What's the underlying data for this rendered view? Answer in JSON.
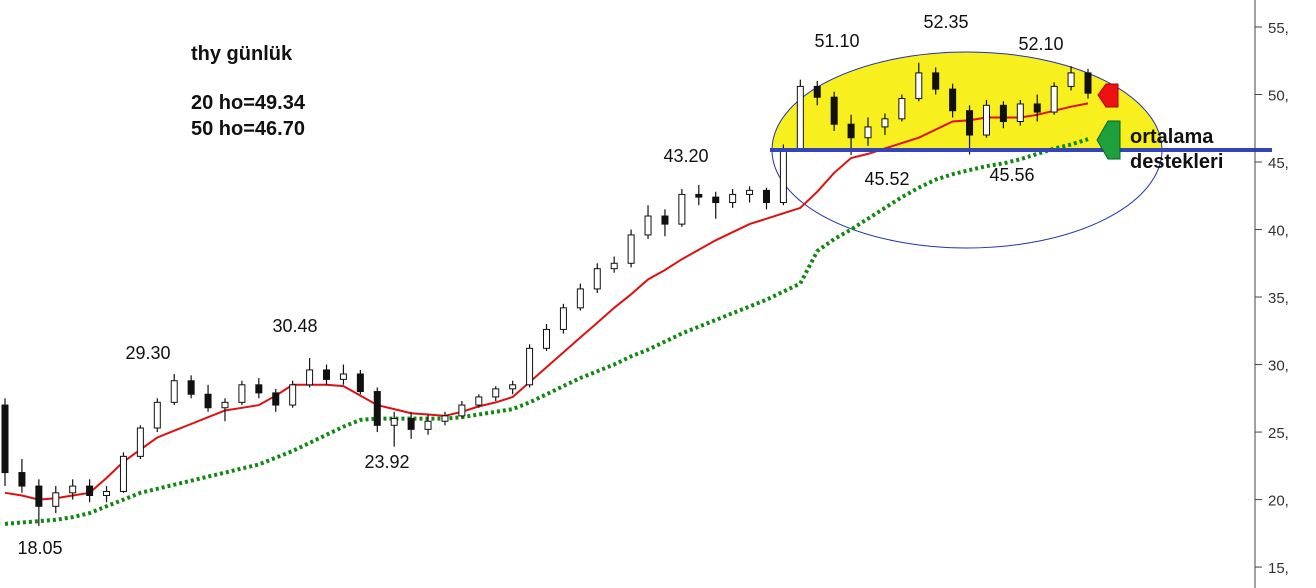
{
  "chart_data": {
    "type": "candlestick",
    "notes": [
      "thy günlük",
      "20 ho=49.34",
      "50 ho=46.70"
    ],
    "side_note": [
      "ortalama",
      "destekleri"
    ],
    "price_labels": [
      "18.05",
      "29.30",
      "30.48",
      "23.92",
      "43.20",
      "51.10",
      "52.35",
      "52.10",
      "45.52",
      "45.56"
    ],
    "candles": [
      [
        27,
        27.5,
        21,
        22
      ],
      [
        22,
        23,
        20.5,
        21
      ],
      [
        21,
        21.5,
        18.05,
        19.5
      ],
      [
        19.5,
        21,
        19,
        20.5
      ],
      [
        20.5,
        21.5,
        20,
        21
      ],
      [
        21,
        21.5,
        19.8,
        20.3
      ],
      [
        20.3,
        21,
        19.8,
        20.6
      ],
      [
        20.6,
        23.5,
        20.5,
        23.2
      ],
      [
        23.2,
        25.5,
        23,
        25.3
      ],
      [
        25.3,
        27.5,
        25,
        27.2
      ],
      [
        27.2,
        29.3,
        27,
        28.8
      ],
      [
        28.8,
        29.2,
        27.5,
        27.8
      ],
      [
        27.8,
        28.5,
        26.5,
        26.8
      ],
      [
        26.8,
        27.5,
        25.8,
        27.2
      ],
      [
        27.2,
        28.8,
        27,
        28.5
      ],
      [
        28.5,
        29,
        27.5,
        27.9
      ],
      [
        27.9,
        28.2,
        26.5,
        27
      ],
      [
        27,
        28.8,
        26.8,
        28.5
      ],
      [
        28.5,
        30.48,
        28.3,
        29.6
      ],
      [
        29.6,
        30,
        28.5,
        28.9
      ],
      [
        28.9,
        30,
        28.5,
        29.3
      ],
      [
        29.3,
        29.6,
        27.8,
        28
      ],
      [
        28,
        28.3,
        25,
        25.5
      ],
      [
        25.5,
        26.5,
        23.92,
        26
      ],
      [
        26,
        26.5,
        24.5,
        25.2
      ],
      [
        25.2,
        26.3,
        24.8,
        25.8
      ],
      [
        25.8,
        26.5,
        25.5,
        26.2
      ],
      [
        26.2,
        27.3,
        26,
        27
      ],
      [
        27,
        27.8,
        26.8,
        27.6
      ],
      [
        27.6,
        28.4,
        27.3,
        28.2
      ],
      [
        28.2,
        28.8,
        27.8,
        28.5
      ],
      [
        28.5,
        31.5,
        28.3,
        31.2
      ],
      [
        31.2,
        33,
        31,
        32.6
      ],
      [
        32.6,
        34.5,
        32.3,
        34.2
      ],
      [
        34.2,
        36,
        34,
        35.6
      ],
      [
        35.6,
        37.5,
        35.3,
        37.1
      ],
      [
        37.1,
        38,
        36.8,
        37.5
      ],
      [
        37.5,
        40,
        37.2,
        39.6
      ],
      [
        39.6,
        41.8,
        39.3,
        41
      ],
      [
        41,
        41.5,
        39.5,
        40.4
      ],
      [
        40.4,
        43,
        40.2,
        42.6
      ],
      [
        42.6,
        43.3,
        41.8,
        42.4
      ],
      [
        42.4,
        42.8,
        40.8,
        42
      ],
      [
        42,
        43,
        41.6,
        42.6
      ],
      [
        42.6,
        43.2,
        42,
        42.9
      ],
      [
        42.9,
        43.1,
        41.5,
        42
      ],
      [
        42,
        46.3,
        41.8,
        46
      ],
      [
        46,
        51.1,
        45.8,
        50.6
      ],
      [
        50.6,
        51,
        49.2,
        49.8
      ],
      [
        49.8,
        50.2,
        47.3,
        47.8
      ],
      [
        47.8,
        48.5,
        45.52,
        46.8
      ],
      [
        46.8,
        48.3,
        46.2,
        47.6
      ],
      [
        47.6,
        48.6,
        47,
        48.2
      ],
      [
        48.2,
        50,
        48,
        49.7
      ],
      [
        49.7,
        52.35,
        49.5,
        51.6
      ],
      [
        51.6,
        52,
        50,
        50.4
      ],
      [
        50.4,
        50.8,
        48.3,
        48.8
      ],
      [
        48.8,
        49.2,
        45.56,
        47
      ],
      [
        47,
        49.6,
        46.8,
        49.2
      ],
      [
        49.2,
        49.5,
        47.5,
        48
      ],
      [
        48,
        49.6,
        47.7,
        49.3
      ],
      [
        49.3,
        50,
        48,
        48.7
      ],
      [
        48.7,
        50.9,
        48.5,
        50.6
      ],
      [
        50.6,
        52.1,
        50.3,
        51.6
      ],
      [
        51.6,
        51.9,
        49.7,
        50.1
      ]
    ],
    "series": [
      {
        "color": "#dd1111",
        "style": "solid",
        "values": [
          20.5,
          20.3,
          20,
          20.1,
          20.3,
          20.5,
          21.6,
          22.8,
          23.7,
          24.6,
          25.1,
          25.6,
          26.1,
          26.6,
          26.8,
          27,
          27.7,
          28.5,
          28.5,
          28.5,
          28.4,
          27.7,
          27,
          26.7,
          26.4,
          26.3,
          26.2,
          26.5,
          26.9,
          27.2,
          27.6,
          28.7,
          29.8,
          30.9,
          32,
          33.1,
          34.2,
          35.2,
          36.3,
          37,
          37.8,
          38.5,
          39.2,
          39.8,
          40.4,
          40.8,
          41.2,
          41.6,
          42.8,
          44.2,
          45.3,
          45.6,
          46,
          46.4,
          46.8,
          47.4,
          48,
          48.1,
          48.3,
          48.3,
          48.3,
          48.5,
          48.8,
          49.1,
          49.34
        ]
      },
      {
        "color": "#118811",
        "style": "dotted",
        "values": [
          18.2,
          18.3,
          18.4,
          18.5,
          18.7,
          19,
          19.5,
          20,
          20.5,
          20.8,
          21.1,
          21.4,
          21.7,
          22,
          22.3,
          22.6,
          23.1,
          23.6,
          24.2,
          24.8,
          25.4,
          25.9,
          26,
          26,
          26,
          26,
          26,
          26.1,
          26.3,
          26.5,
          26.7,
          27.2,
          27.8,
          28.4,
          29,
          29.5,
          30,
          30.6,
          31.1,
          31.7,
          32.3,
          32.8,
          33.3,
          33.8,
          34.3,
          34.8,
          35.4,
          36,
          38.4,
          39.3,
          40,
          40.8,
          41.6,
          42.4,
          43.1,
          43.7,
          44.1,
          44.4,
          44.7,
          44.9,
          45.2,
          45.6,
          46,
          46.3,
          46.7
        ]
      }
    ],
    "ylim": [
      13.45,
      57
    ],
    "yticks": [
      {
        "value": 15,
        "label": "15,"
      },
      {
        "value": 20,
        "label": "20,"
      },
      {
        "value": 25,
        "label": "25,"
      },
      {
        "value": 30,
        "label": "30,"
      },
      {
        "value": 35,
        "label": "35,"
      },
      {
        "value": 40,
        "label": "40,"
      },
      {
        "value": 45,
        "label": "45,"
      },
      {
        "value": 50,
        "label": "50,"
      },
      {
        "value": 55,
        "label": "55,"
      }
    ]
  }
}
